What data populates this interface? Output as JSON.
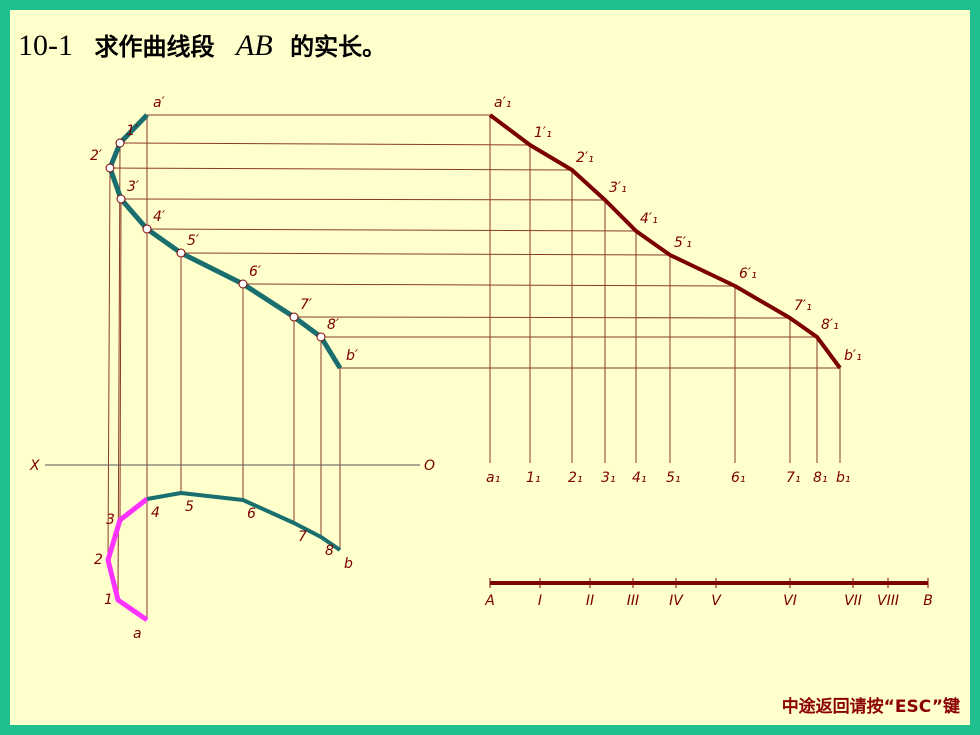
{
  "title": {
    "number": "10-1",
    "text": "求作曲线段",
    "ab": "AB",
    "tail": "的实长。"
  },
  "front_labels": [
    "a′",
    "1′",
    "2′",
    "3′",
    "4′",
    "5′",
    "6′",
    "7′",
    "8′",
    "b′"
  ],
  "true_labels": [
    "a′₁",
    "1′₁",
    "2′₁",
    "3′₁",
    "4′₁",
    "5′₁",
    "6′₁",
    "7′₁",
    "8′₁",
    "b′₁"
  ],
  "base_labels": [
    "a₁",
    "1₁",
    "2₁",
    "3₁",
    "4₁",
    "5₁",
    "6₁",
    "7₁",
    "8₁",
    "b₁"
  ],
  "top_labels": [
    "a",
    "1",
    "2",
    "3",
    "4",
    "5",
    "6",
    "7",
    "8",
    "b"
  ],
  "axis": {
    "x": "X",
    "o": "O"
  },
  "length_labels": [
    "A",
    "I",
    "II",
    "III",
    "IV",
    "V",
    "VI",
    "VII",
    "VIII",
    "B"
  ],
  "footer": "中途返回请按“ESC”键"
}
